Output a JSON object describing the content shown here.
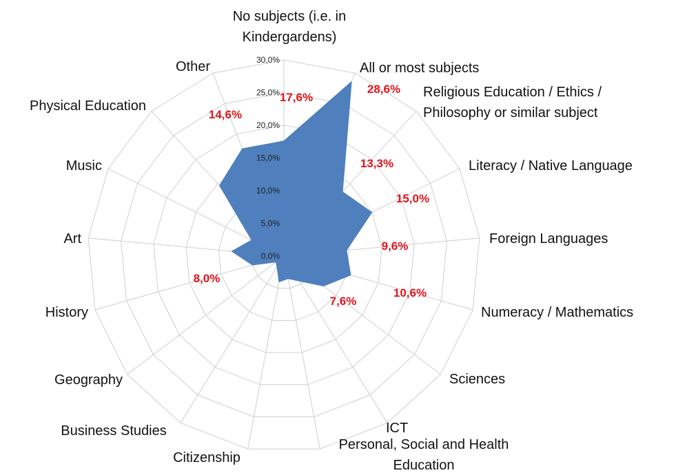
{
  "chart_data": {
    "type": "radar",
    "title": "",
    "categories": [
      "No subjects (i.e. in Kindergardens)",
      "All or most subjects",
      "Religious Education / Ethics / Philosophy or similar subject",
      "Literacy / Native Language",
      "Foreign Languages",
      "Numeracy / Mathematics",
      "Sciences",
      "ICT",
      "Personal, Social and Health Education",
      "Citizenship",
      "Business Studies",
      "Geography",
      "History",
      "Art",
      "Music",
      "Physical Education",
      "Other"
    ],
    "series": [
      {
        "values": [
          17.6,
          28.6,
          13.3,
          15.0,
          9.6,
          10.6,
          7.6,
          4.5,
          3.5,
          4.0,
          2.0,
          1.5,
          5.0,
          8.0,
          5.5,
          14.6,
          17.6
        ]
      }
    ],
    "data_labels": {
      "0": "17,6%",
      "1": "28,6%",
      "2": "13,3%",
      "3": "15,0%",
      "4": "9,6%",
      "5": "10,6%",
      "6": "7,6%",
      "13": "8,0%",
      "15": "14,6%"
    },
    "rlim": [
      0,
      30
    ],
    "ticks": [
      "0,0%",
      "5,0%",
      "10,0%",
      "15,0%",
      "20,0%",
      "25,0%",
      "30,0%"
    ],
    "grid": true,
    "legend": "none",
    "colors": {
      "fill": "#4f7fbd",
      "label": "#e3141b",
      "grid": "#cfcfcf"
    }
  }
}
